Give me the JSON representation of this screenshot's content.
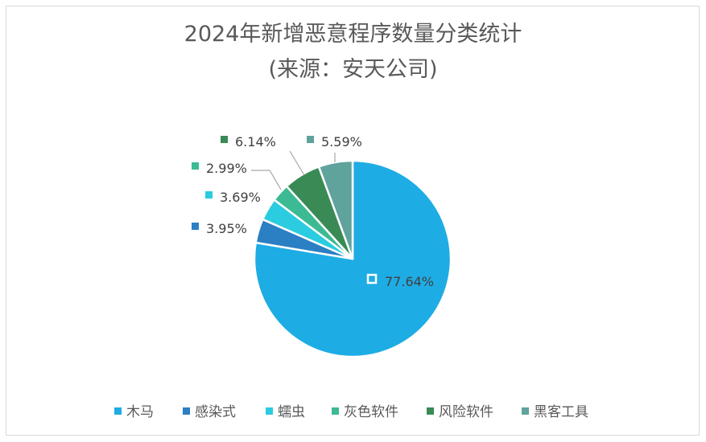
{
  "chart_data": {
    "type": "pie",
    "title": "2024年新增恶意程序数量分类统计",
    "subtitle": "(来源：安天公司)",
    "categories": [
      "木马",
      "感染式",
      "蠕虫",
      "灰色软件",
      "风险软件",
      "黑客工具"
    ],
    "values": [
      77.64,
      3.95,
      3.69,
      2.99,
      6.14,
      5.59
    ],
    "labels": [
      "77.64%",
      "3.95%",
      "3.69%",
      "2.99%",
      "6.14%",
      "5.59%"
    ],
    "colors": [
      "#1eace4",
      "#2b7fc3",
      "#2bcbe0",
      "#3cba94",
      "#3a8a56",
      "#5fa39c"
    ],
    "legend": "bottom"
  }
}
